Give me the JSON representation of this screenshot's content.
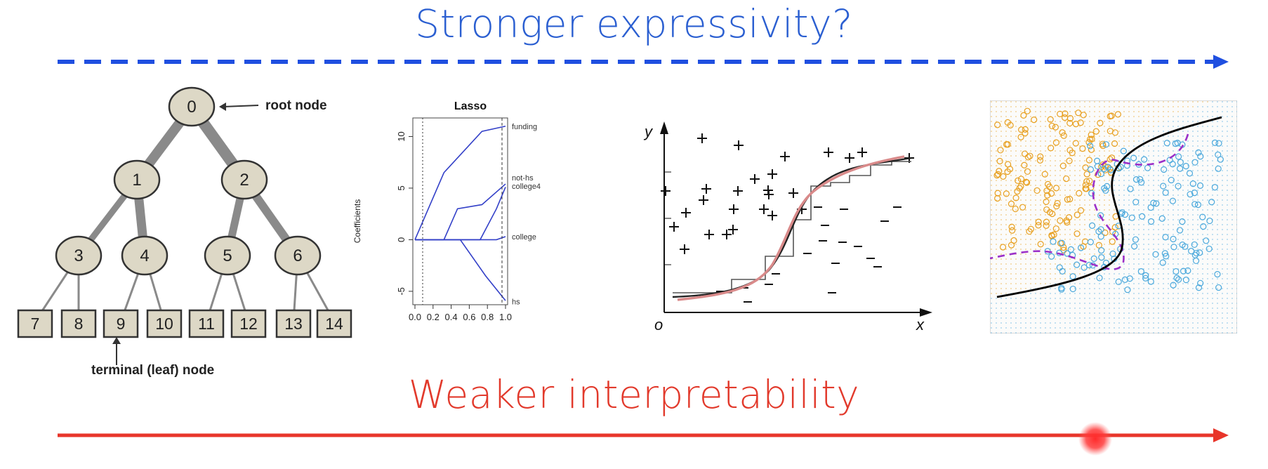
{
  "slide": {
    "top_label": "Stronger expressivity?",
    "bottom_label": "Weaker interpretability",
    "top_arrow_color": "#1f4fe0",
    "bottom_arrow_color": "#e8352a"
  },
  "tree": {
    "root_label": "root node",
    "leaf_label": "terminal (leaf) node",
    "internal_nodes": [
      "0",
      "1",
      "2",
      "3",
      "4",
      "5",
      "6"
    ],
    "leaf_nodes": [
      "7",
      "8",
      "9",
      "10",
      "11",
      "12",
      "13",
      "14"
    ],
    "node_fill": "#ddd8c6",
    "edge_color": "#8a8a8a"
  },
  "lasso": {
    "title": "Lasso",
    "ylabel": "Coefficients",
    "x_ticks": [
      "0.0",
      "0.2",
      "0.4",
      "0.6",
      "0.8",
      "1.0"
    ],
    "y_ticks": [
      "-5",
      "0",
      "5",
      "10"
    ],
    "line_labels": [
      "funding",
      "not-hs",
      "college4",
      "college",
      "hs"
    ],
    "line_color": "#3340c8"
  },
  "sigmoid": {
    "ylabel": "y",
    "xlabel": "x",
    "origin_label": "o",
    "smooth_color": "#d98a8a",
    "step_color": "#555555"
  },
  "classifier": {
    "orange_color": "#e8a020",
    "blue_color": "#4aa8dc",
    "boundary_color": "#000000",
    "bayes_color": "#9b30c8"
  }
}
